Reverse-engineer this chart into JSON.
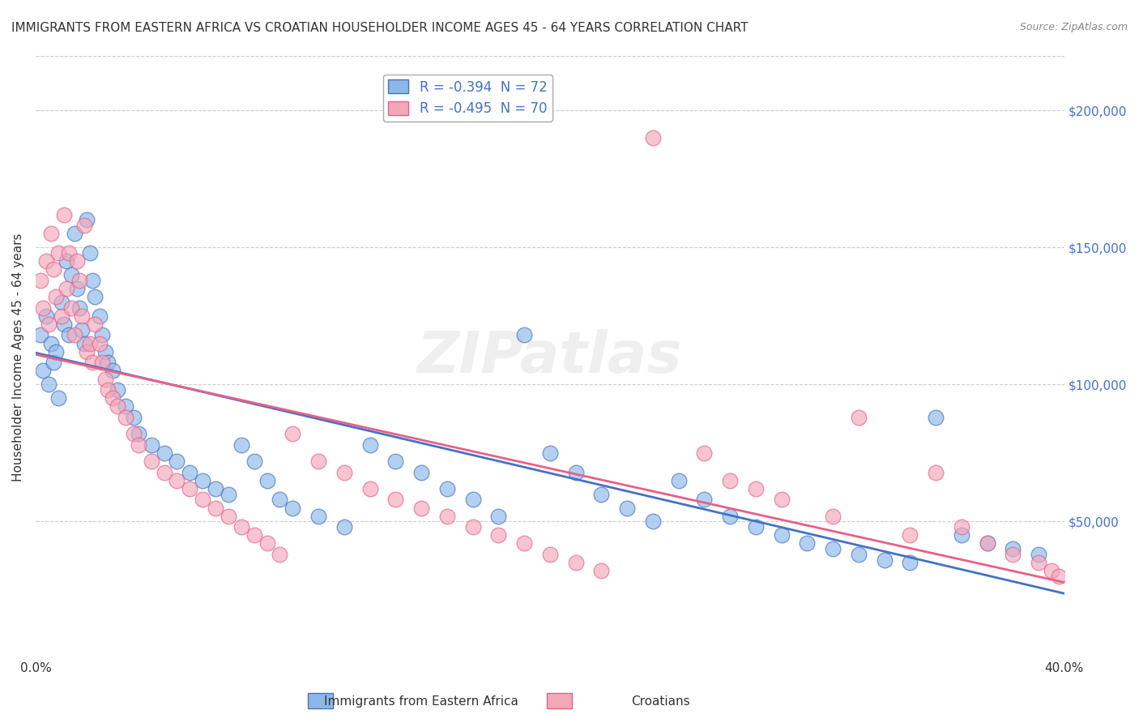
{
  "title": "IMMIGRANTS FROM EASTERN AFRICA VS CROATIAN HOUSEHOLDER INCOME AGES 45 - 64 YEARS CORRELATION CHART",
  "source": "Source: ZipAtlas.com",
  "ylabel": "Householder Income Ages 45 - 64 years",
  "xlim": [
    0.0,
    0.4
  ],
  "ylim": [
    0,
    220000
  ],
  "xtick_positions": [
    0.0,
    0.05,
    0.1,
    0.15,
    0.2,
    0.25,
    0.3,
    0.35,
    0.4
  ],
  "xticklabels": [
    "0.0%",
    "",
    "",
    "",
    "",
    "",
    "",
    "",
    "40.0%"
  ],
  "yticks_right": [
    50000,
    100000,
    150000,
    200000
  ],
  "ytick_labels_right": [
    "$50,000",
    "$100,000",
    "$150,000",
    "$200,000"
  ],
  "r_blue": -0.394,
  "n_blue": 72,
  "r_pink": -0.495,
  "n_pink": 70,
  "legend_labels": [
    "Immigrants from Eastern Africa",
    "Croatians"
  ],
  "blue_color": "#8BB8E8",
  "pink_color": "#F4A7B9",
  "blue_line_color": "#4472C4",
  "pink_line_color": "#E8608A",
  "watermark": "ZIPatlas",
  "background_color": "#FFFFFF",
  "grid_color": "#CCCCCC",
  "scatter_blue": [
    [
      0.002,
      118000
    ],
    [
      0.003,
      105000
    ],
    [
      0.004,
      125000
    ],
    [
      0.005,
      100000
    ],
    [
      0.006,
      115000
    ],
    [
      0.007,
      108000
    ],
    [
      0.008,
      112000
    ],
    [
      0.009,
      95000
    ],
    [
      0.01,
      130000
    ],
    [
      0.011,
      122000
    ],
    [
      0.012,
      145000
    ],
    [
      0.013,
      118000
    ],
    [
      0.014,
      140000
    ],
    [
      0.015,
      155000
    ],
    [
      0.016,
      135000
    ],
    [
      0.017,
      128000
    ],
    [
      0.018,
      120000
    ],
    [
      0.019,
      115000
    ],
    [
      0.02,
      160000
    ],
    [
      0.021,
      148000
    ],
    [
      0.022,
      138000
    ],
    [
      0.023,
      132000
    ],
    [
      0.025,
      125000
    ],
    [
      0.026,
      118000
    ],
    [
      0.027,
      112000
    ],
    [
      0.028,
      108000
    ],
    [
      0.03,
      105000
    ],
    [
      0.032,
      98000
    ],
    [
      0.035,
      92000
    ],
    [
      0.038,
      88000
    ],
    [
      0.04,
      82000
    ],
    [
      0.045,
      78000
    ],
    [
      0.05,
      75000
    ],
    [
      0.055,
      72000
    ],
    [
      0.06,
      68000
    ],
    [
      0.065,
      65000
    ],
    [
      0.07,
      62000
    ],
    [
      0.075,
      60000
    ],
    [
      0.08,
      78000
    ],
    [
      0.085,
      72000
    ],
    [
      0.09,
      65000
    ],
    [
      0.095,
      58000
    ],
    [
      0.1,
      55000
    ],
    [
      0.11,
      52000
    ],
    [
      0.12,
      48000
    ],
    [
      0.13,
      78000
    ],
    [
      0.14,
      72000
    ],
    [
      0.15,
      68000
    ],
    [
      0.16,
      62000
    ],
    [
      0.17,
      58000
    ],
    [
      0.18,
      52000
    ],
    [
      0.19,
      118000
    ],
    [
      0.2,
      75000
    ],
    [
      0.21,
      68000
    ],
    [
      0.22,
      60000
    ],
    [
      0.23,
      55000
    ],
    [
      0.24,
      50000
    ],
    [
      0.25,
      65000
    ],
    [
      0.26,
      58000
    ],
    [
      0.27,
      52000
    ],
    [
      0.28,
      48000
    ],
    [
      0.29,
      45000
    ],
    [
      0.3,
      42000
    ],
    [
      0.31,
      40000
    ],
    [
      0.32,
      38000
    ],
    [
      0.33,
      36000
    ],
    [
      0.34,
      35000
    ],
    [
      0.35,
      88000
    ],
    [
      0.36,
      45000
    ],
    [
      0.37,
      42000
    ],
    [
      0.38,
      40000
    ],
    [
      0.39,
      38000
    ]
  ],
  "scatter_pink": [
    [
      0.002,
      138000
    ],
    [
      0.003,
      128000
    ],
    [
      0.004,
      145000
    ],
    [
      0.005,
      122000
    ],
    [
      0.006,
      155000
    ],
    [
      0.007,
      142000
    ],
    [
      0.008,
      132000
    ],
    [
      0.009,
      148000
    ],
    [
      0.01,
      125000
    ],
    [
      0.011,
      162000
    ],
    [
      0.012,
      135000
    ],
    [
      0.013,
      148000
    ],
    [
      0.014,
      128000
    ],
    [
      0.015,
      118000
    ],
    [
      0.016,
      145000
    ],
    [
      0.017,
      138000
    ],
    [
      0.018,
      125000
    ],
    [
      0.019,
      158000
    ],
    [
      0.02,
      112000
    ],
    [
      0.021,
      115000
    ],
    [
      0.022,
      108000
    ],
    [
      0.023,
      122000
    ],
    [
      0.025,
      115000
    ],
    [
      0.026,
      108000
    ],
    [
      0.027,
      102000
    ],
    [
      0.028,
      98000
    ],
    [
      0.03,
      95000
    ],
    [
      0.032,
      92000
    ],
    [
      0.035,
      88000
    ],
    [
      0.038,
      82000
    ],
    [
      0.04,
      78000
    ],
    [
      0.045,
      72000
    ],
    [
      0.05,
      68000
    ],
    [
      0.055,
      65000
    ],
    [
      0.06,
      62000
    ],
    [
      0.065,
      58000
    ],
    [
      0.07,
      55000
    ],
    [
      0.075,
      52000
    ],
    [
      0.08,
      48000
    ],
    [
      0.085,
      45000
    ],
    [
      0.09,
      42000
    ],
    [
      0.095,
      38000
    ],
    [
      0.1,
      82000
    ],
    [
      0.11,
      72000
    ],
    [
      0.12,
      68000
    ],
    [
      0.13,
      62000
    ],
    [
      0.14,
      58000
    ],
    [
      0.15,
      55000
    ],
    [
      0.16,
      52000
    ],
    [
      0.17,
      48000
    ],
    [
      0.18,
      45000
    ],
    [
      0.19,
      42000
    ],
    [
      0.2,
      38000
    ],
    [
      0.21,
      35000
    ],
    [
      0.22,
      32000
    ],
    [
      0.24,
      190000
    ],
    [
      0.26,
      75000
    ],
    [
      0.28,
      62000
    ],
    [
      0.32,
      88000
    ],
    [
      0.35,
      68000
    ],
    [
      0.36,
      48000
    ],
    [
      0.37,
      42000
    ],
    [
      0.38,
      38000
    ],
    [
      0.39,
      35000
    ],
    [
      0.395,
      32000
    ],
    [
      0.398,
      30000
    ],
    [
      0.34,
      45000
    ],
    [
      0.31,
      52000
    ],
    [
      0.29,
      58000
    ],
    [
      0.27,
      65000
    ]
  ]
}
